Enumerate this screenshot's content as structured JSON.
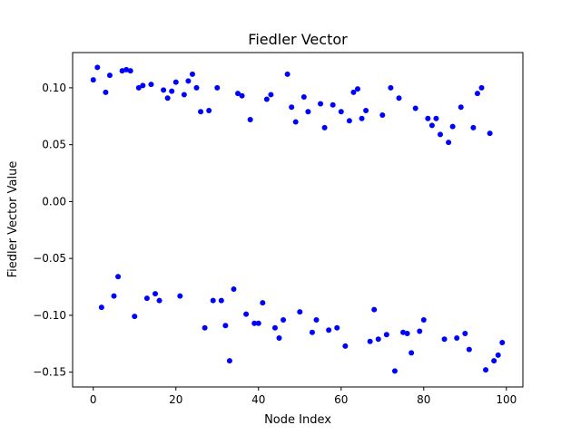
{
  "chart_data": {
    "type": "scatter",
    "title": "Fiedler Vector",
    "xlabel": "Node Index",
    "ylabel": "Fiedler Vector Value",
    "xlim": [
      -5,
      104
    ],
    "ylim": [
      -0.163,
      0.131
    ],
    "xticks": [
      0,
      20,
      40,
      60,
      80,
      100
    ],
    "xtick_labels": [
      "0",
      "20",
      "40",
      "60",
      "80",
      "100"
    ],
    "yticks": [
      0.1,
      0.05,
      0.0,
      -0.05,
      -0.1,
      -0.15
    ],
    "ytick_labels": [
      "0.10",
      "0.05",
      "0.00",
      "−0.05",
      "−0.10",
      "−0.15"
    ],
    "grid": false,
    "color": "#0000ff",
    "series": [
      {
        "x": [
          0,
          1,
          2,
          3,
          4,
          5,
          6,
          7,
          8,
          9,
          10,
          11,
          12,
          13,
          14,
          15,
          16,
          17,
          18,
          19,
          20,
          21,
          22,
          23,
          24,
          25,
          26,
          27,
          28,
          29,
          30,
          31,
          32,
          33,
          34,
          35,
          36,
          37,
          38,
          39,
          40,
          41,
          42,
          43,
          44,
          45,
          46,
          47,
          48,
          49,
          50,
          51,
          52,
          53,
          54,
          55,
          56,
          57,
          58,
          59,
          60,
          61,
          62,
          63,
          64,
          65,
          66,
          67,
          68,
          69,
          70,
          71,
          72,
          73,
          74,
          75,
          76,
          77,
          78,
          79,
          80,
          81,
          82,
          83,
          84,
          85,
          86,
          87,
          88,
          89,
          90,
          91,
          92,
          93,
          94,
          95,
          96,
          97,
          98,
          99
        ],
        "y": [
          0.107,
          0.118,
          -0.093,
          0.096,
          0.111,
          -0.083,
          -0.066,
          0.115,
          0.116,
          0.115,
          -0.101,
          0.1,
          0.102,
          -0.085,
          0.103,
          -0.081,
          -0.087,
          0.098,
          0.091,
          0.097,
          0.105,
          -0.083,
          0.094,
          0.106,
          0.112,
          0.1,
          0.079,
          -0.111,
          0.08,
          -0.087,
          0.1,
          -0.087,
          -0.109,
          -0.14,
          -0.077,
          0.095,
          0.093,
          -0.099,
          0.072,
          -0.107,
          -0.107,
          -0.089,
          0.09,
          0.094,
          -0.111,
          -0.12,
          -0.104,
          0.112,
          0.083,
          0.07,
          -0.097,
          0.092,
          0.079,
          -0.115,
          -0.104,
          0.086,
          0.065,
          -0.113,
          0.085,
          -0.111,
          0.079,
          -0.127,
          0.071,
          0.096,
          0.099,
          0.073,
          0.08,
          -0.123,
          -0.095,
          -0.121,
          0.076,
          -0.117,
          0.1,
          -0.149,
          0.091,
          -0.115,
          -0.116,
          -0.133,
          0.082,
          -0.114,
          -0.104,
          0.073,
          0.067,
          0.073,
          0.059,
          -0.121,
          0.052,
          0.066,
          -0.12,
          0.083,
          -0.116,
          -0.13,
          0.065,
          0.095,
          0.1,
          -0.148,
          0.06,
          -0.14,
          -0.135,
          -0.124
        ]
      }
    ]
  }
}
